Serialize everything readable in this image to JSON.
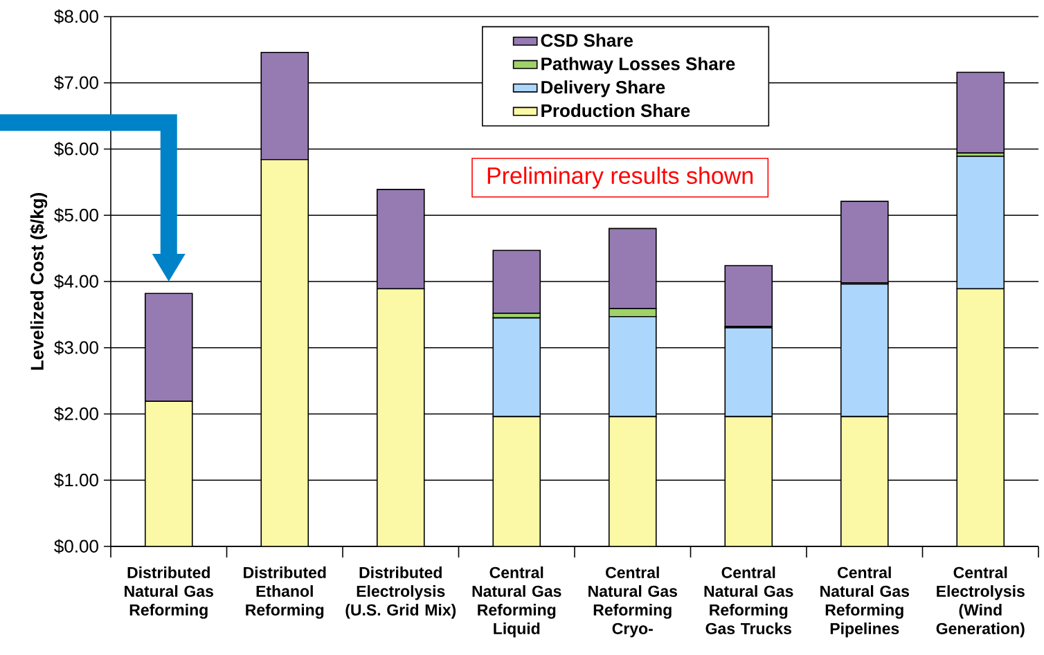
{
  "chart_data": {
    "type": "bar",
    "stacked": true,
    "ylabel": "Levelized Cost ($/kg)",
    "categories": [
      "Distributed Natural Gas Reforming",
      "Distributed Ethanol Reforming",
      "Distributed Electrolysis (U.S. Grid Mix)",
      "Central Natural Gas Reforming Liquid",
      "Central Natural Gas Reforming Cryo-",
      "Central Natural Gas Reforming Gas Trucks",
      "Central Natural Gas Reforming Pipelines",
      "Central Electrolysis (Wind Generation)"
    ],
    "series": [
      {
        "name": "Production Share",
        "color": "#fbf8a6",
        "values": [
          2.19,
          5.84,
          3.89,
          1.96,
          1.96,
          1.96,
          1.96,
          3.89
        ]
      },
      {
        "name": "Delivery Share",
        "color": "#acd6fc",
        "values": [
          0,
          0,
          0,
          1.49,
          1.51,
          1.34,
          2.0,
          2.0
        ]
      },
      {
        "name": "Pathway Losses Share",
        "color": "#9fd36a",
        "values": [
          0,
          0,
          0,
          0.07,
          0.12,
          0.02,
          0.02,
          0.05
        ]
      },
      {
        "name": "CSD Share",
        "color": "#957bb2",
        "values": [
          1.63,
          1.62,
          1.5,
          0.95,
          1.21,
          0.92,
          1.23,
          1.22
        ]
      }
    ],
    "ylim": [
      0,
      8
    ],
    "yticks": [
      {
        "value": 0,
        "label": "$0.00"
      },
      {
        "value": 1,
        "label": "$1.00"
      },
      {
        "value": 2,
        "label": "$2.00"
      },
      {
        "value": 3,
        "label": "$3.00"
      },
      {
        "value": 4,
        "label": "$4.00"
      },
      {
        "value": 5,
        "label": "$5.00"
      },
      {
        "value": 6,
        "label": "$6.00"
      },
      {
        "value": 7,
        "label": "$7.00"
      },
      {
        "value": 8,
        "label": "$8.00"
      }
    ],
    "grid": "y",
    "legend": "top",
    "annotations": [
      "Preliminary results shown"
    ]
  }
}
